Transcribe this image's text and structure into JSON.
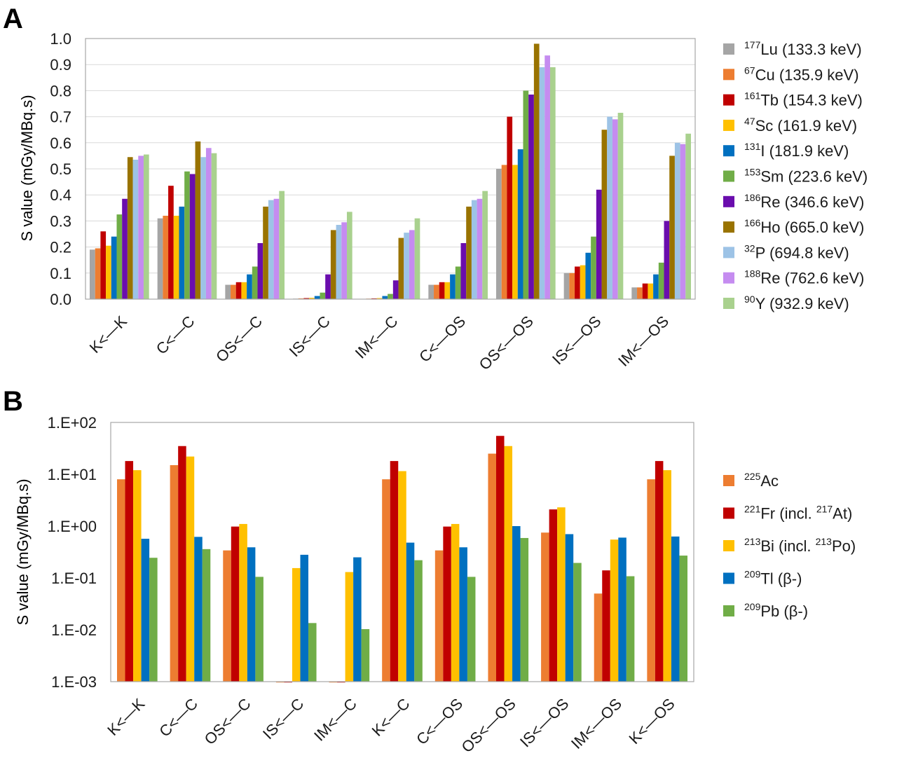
{
  "chart_data": [
    {
      "panel_label": "A",
      "type": "bar",
      "ylabel": "S value (mGy/MBq.s)",
      "ylim": [
        0,
        1.0
      ],
      "yticks": [
        "0.0",
        "0.1",
        "0.2",
        "0.3",
        "0.4",
        "0.5",
        "0.6",
        "0.7",
        "0.8",
        "0.9",
        "1.0"
      ],
      "grid": true,
      "legend_position": "right",
      "categories": [
        "K<—K",
        "C<—C",
        "OS<—C",
        "IS<—C",
        "IM<—C",
        "C<—OS",
        "OS<—OS",
        "IS<—OS",
        "IM<—OS"
      ],
      "series": [
        {
          "name": "Lu (133.3 keV)",
          "mass": "177",
          "color": "#a5a5a5",
          "values": [
            0.19,
            0.31,
            0.055,
            0.002,
            0.001,
            0.055,
            0.5,
            0.1,
            0.045
          ]
        },
        {
          "name": "Cu (135.9 keV)",
          "mass": "67",
          "color": "#ed7d31",
          "values": [
            0.195,
            0.32,
            0.055,
            0.003,
            0.002,
            0.055,
            0.515,
            0.1,
            0.045
          ]
        },
        {
          "name": "Tb (154.3 keV)",
          "mass": "161",
          "color": "#c00000",
          "values": [
            0.26,
            0.435,
            0.065,
            0.004,
            0.003,
            0.065,
            0.7,
            0.125,
            0.06
          ]
        },
        {
          "name": "Sc (161.9 keV)",
          "mass": "47",
          "color": "#ffc000",
          "values": [
            0.205,
            0.32,
            0.065,
            0.005,
            0.004,
            0.065,
            0.515,
            0.13,
            0.06
          ]
        },
        {
          "name": "I (181.9 keV)",
          "mass": "131",
          "color": "#0070c0",
          "values": [
            0.24,
            0.355,
            0.095,
            0.012,
            0.012,
            0.095,
            0.575,
            0.178,
            0.095
          ]
        },
        {
          "name": "Sm (223.6 keV)",
          "mass": "153",
          "color": "#70ad47",
          "values": [
            0.325,
            0.49,
            0.125,
            0.025,
            0.02,
            0.125,
            0.8,
            0.24,
            0.14
          ]
        },
        {
          "name": "Re (346.6 keV)",
          "mass": "186",
          "color": "#6a0dad",
          "values": [
            0.385,
            0.48,
            0.215,
            0.095,
            0.072,
            0.215,
            0.785,
            0.42,
            0.3
          ]
        },
        {
          "name": "Ho (665.0 keV)",
          "mass": "166",
          "color": "#997300",
          "values": [
            0.545,
            0.605,
            0.355,
            0.265,
            0.235,
            0.355,
            0.98,
            0.65,
            0.55
          ]
        },
        {
          "name": "P (694.8 keV)",
          "mass": "32",
          "color": "#9dc3e6",
          "values": [
            0.535,
            0.545,
            0.38,
            0.285,
            0.255,
            0.38,
            0.89,
            0.7,
            0.6
          ]
        },
        {
          "name": "Re (762.6 keV)",
          "mass": "188",
          "color": "#c58cf0",
          "values": [
            0.55,
            0.58,
            0.385,
            0.295,
            0.265,
            0.385,
            0.935,
            0.69,
            0.595
          ]
        },
        {
          "name": "Y (932.9 keV)",
          "mass": "90",
          "color": "#a9d18e",
          "values": [
            0.555,
            0.56,
            0.415,
            0.335,
            0.31,
            0.415,
            0.89,
            0.715,
            0.635
          ]
        }
      ]
    },
    {
      "panel_label": "B",
      "type": "bar",
      "yscale": "log",
      "ylabel": "S value (mGy/MBq.s)",
      "ylim": [
        0.001,
        100
      ],
      "yticks": [
        "1.E-03",
        "1.E-02",
        "1.E-01",
        "1.E+00",
        "1.E+01",
        "1.E+02"
      ],
      "grid": false,
      "legend_position": "right",
      "categories": [
        "K<—K",
        "C<—C",
        "OS<—C",
        "IS<—C",
        "IM<—C",
        "K<—C",
        "C<—OS",
        "OS<—OS",
        "IS<—OS",
        "IM<—OS",
        "K<—OS"
      ],
      "series": [
        {
          "name": "Ac",
          "mass": "225",
          "suffix": "",
          "color": "#ed7d31",
          "values": [
            8.0,
            15.0,
            0.34,
            0.001,
            0.001,
            8.0,
            0.34,
            25.0,
            0.75,
            0.05,
            8.0
          ]
        },
        {
          "name": "Fr (incl. ",
          "mass": "221",
          "suffix_mass": "217",
          "suffix": "At)",
          "color": "#c00000",
          "values": [
            18.0,
            35.0,
            0.98,
            0.001,
            0.001,
            18.0,
            0.98,
            55.0,
            2.1,
            0.14,
            18.0
          ]
        },
        {
          "name": "Bi (incl. ",
          "mass": "213",
          "suffix_mass": "213",
          "suffix": "Po)",
          "color": "#ffc000",
          "values": [
            12.0,
            22.0,
            1.1,
            0.155,
            0.13,
            11.5,
            1.1,
            35.0,
            2.3,
            0.55,
            12.0
          ]
        },
        {
          "name": "Tl (β-)",
          "mass": "209",
          "suffix": "",
          "color": "#0070c0",
          "values": [
            0.57,
            0.62,
            0.39,
            0.28,
            0.25,
            0.48,
            0.39,
            1.0,
            0.7,
            0.6,
            0.63
          ]
        },
        {
          "name": "Pb (β-)",
          "mass": "209",
          "suffix": "",
          "color": "#70ad47",
          "values": [
            0.245,
            0.36,
            0.105,
            0.0135,
            0.0103,
            0.22,
            0.105,
            0.59,
            0.195,
            0.108,
            0.27
          ]
        }
      ]
    }
  ]
}
